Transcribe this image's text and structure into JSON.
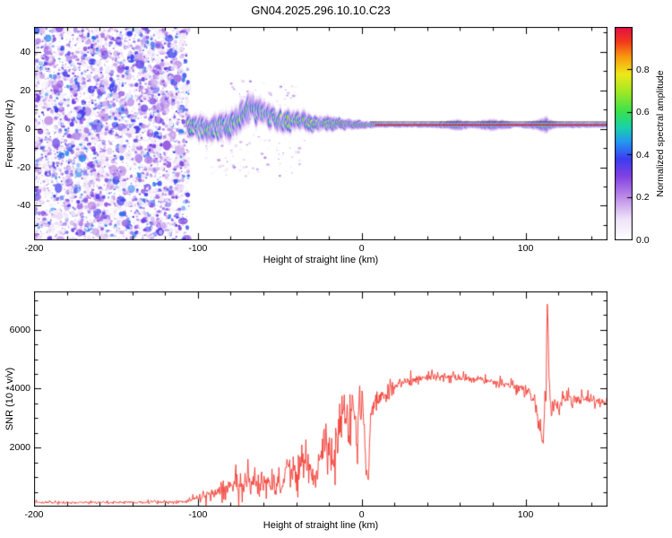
{
  "title": "GN04.2025.296.10.10.C23",
  "chart_data": [
    {
      "type": "heatmap",
      "title": "GN04.2025.296.10.10.C23",
      "xlabel": "Height of straight line (km)",
      "ylabel": "Frequency (Hz)",
      "xlim": [
        -200,
        150
      ],
      "ylim": [
        -58,
        53
      ],
      "xticks": [
        -200,
        -100,
        0,
        100
      ],
      "x_minor_step": 20,
      "yticks": [
        -40,
        -20,
        0,
        20,
        40
      ],
      "y_minor_step": 10,
      "colorbar": {
        "label": "Normalized spectral amplitude",
        "range": [
          0,
          1
        ],
        "ticks": [
          0,
          0.2,
          0.4,
          0.6,
          0.8
        ]
      },
      "colormap_stops": [
        [
          0.0,
          [
            255,
            255,
            255
          ]
        ],
        [
          0.1,
          [
            238,
            226,
            248
          ]
        ],
        [
          0.2,
          [
            190,
            140,
            232
          ]
        ],
        [
          0.3,
          [
            130,
            65,
            225
          ]
        ],
        [
          0.38,
          [
            60,
            60,
            240
          ]
        ],
        [
          0.46,
          [
            35,
            150,
            240
          ]
        ],
        [
          0.53,
          [
            25,
            210,
            170
          ]
        ],
        [
          0.6,
          [
            55,
            225,
            80
          ]
        ],
        [
          0.7,
          [
            165,
            232,
            35
          ]
        ],
        [
          0.78,
          [
            238,
            232,
            25
          ]
        ],
        [
          0.86,
          [
            248,
            155,
            15
          ]
        ],
        [
          0.93,
          [
            242,
            60,
            25
          ]
        ],
        [
          1.0,
          [
            228,
            15,
            70
          ]
        ]
      ],
      "noise_region": {
        "x_range": [
          -200,
          -105.5
        ],
        "dot_count": 5200,
        "max_amplitude": 0.42
      },
      "scatter_below": {
        "x_range": [
          -95,
          -35
        ],
        "f_range": [
          -25,
          -3
        ],
        "dot_count": 90
      },
      "scatter_above": {
        "x_range": [
          -80,
          -40
        ],
        "f_range": [
          12,
          26
        ],
        "dot_count": 40
      },
      "track": {
        "x_range": [
          -106,
          150
        ],
        "center_freq": [
          [
            -106,
            0
          ],
          [
            -103,
            1
          ],
          [
            -100,
            -0.5
          ],
          [
            -97,
            0.5
          ],
          [
            -94,
            -1
          ],
          [
            -91,
            0.5
          ],
          [
            -88,
            0
          ],
          [
            -85,
            1.5
          ],
          [
            -82,
            1
          ],
          [
            -79,
            3
          ],
          [
            -76,
            5
          ],
          [
            -73,
            7.5
          ],
          [
            -70,
            10
          ],
          [
            -68,
            11.5
          ],
          [
            -66,
            10
          ],
          [
            -64,
            8.5
          ],
          [
            -62,
            9.5
          ],
          [
            -60,
            7.5
          ],
          [
            -58,
            8.5
          ],
          [
            -56,
            5.5
          ],
          [
            -54,
            6.5
          ],
          [
            -52,
            4.5
          ],
          [
            -50,
            5.5
          ],
          [
            -48,
            3.5
          ],
          [
            -46,
            5
          ],
          [
            -44,
            3
          ],
          [
            -42,
            4.5
          ],
          [
            -40,
            5.5
          ],
          [
            -38,
            3.5
          ],
          [
            -36,
            4.5
          ],
          [
            -34,
            2.5
          ],
          [
            -32,
            3.5
          ],
          [
            -30,
            2
          ],
          [
            -28,
            3.5
          ],
          [
            -26,
            1.5
          ],
          [
            -24,
            3
          ],
          [
            -22,
            2
          ],
          [
            -20,
            3
          ],
          [
            -17,
            2
          ],
          [
            -14,
            3
          ],
          [
            -11,
            2
          ],
          [
            -8,
            2.8
          ],
          [
            -5,
            2
          ],
          [
            -2,
            2.4
          ],
          [
            0,
            2
          ],
          [
            150,
            2
          ]
        ],
        "spread": [
          [
            -106,
            5
          ],
          [
            -100,
            5.5
          ],
          [
            -95,
            6
          ],
          [
            -90,
            5.5
          ],
          [
            -85,
            6
          ],
          [
            -80,
            6.5
          ],
          [
            -75,
            7
          ],
          [
            -70,
            7
          ],
          [
            -65,
            6.5
          ],
          [
            -60,
            6
          ],
          [
            -55,
            5.5
          ],
          [
            -50,
            5
          ],
          [
            -45,
            5
          ],
          [
            -40,
            4.5
          ],
          [
            -35,
            4.5
          ],
          [
            -30,
            4
          ],
          [
            -25,
            4
          ],
          [
            -20,
            3.5
          ],
          [
            -15,
            3
          ],
          [
            -10,
            2.8
          ],
          [
            -5,
            2.4
          ],
          [
            0,
            2
          ],
          [
            5,
            1.6
          ],
          [
            15,
            1.3
          ],
          [
            40,
            1.3
          ],
          [
            52,
            2
          ],
          [
            58,
            2.8
          ],
          [
            63,
            2.2
          ],
          [
            68,
            1.6
          ],
          [
            74,
            2.4
          ],
          [
            80,
            2.8
          ],
          [
            86,
            2.4
          ],
          [
            92,
            1.5
          ],
          [
            97,
            1.2
          ],
          [
            102,
            1.8
          ],
          [
            106,
            2.6
          ],
          [
            110,
            3.6
          ],
          [
            113,
            4
          ],
          [
            116,
            2.2
          ],
          [
            122,
            1.5
          ],
          [
            135,
            1.4
          ],
          [
            150,
            1.3
          ]
        ],
        "intensity": [
          [
            -106,
            0.72
          ],
          [
            -98,
            0.68
          ],
          [
            -90,
            0.72
          ],
          [
            -82,
            0.7
          ],
          [
            -74,
            0.74
          ],
          [
            -66,
            0.72
          ],
          [
            -58,
            0.7
          ],
          [
            -50,
            0.76
          ],
          [
            -42,
            0.8
          ],
          [
            -34,
            0.84
          ],
          [
            -26,
            0.8
          ],
          [
            -18,
            0.86
          ],
          [
            -10,
            0.9
          ],
          [
            -4,
            0.92
          ],
          [
            0,
            0.95
          ],
          [
            150,
            0.95
          ]
        ],
        "jitter": [
          [
            -106,
            3
          ],
          [
            -80,
            3
          ],
          [
            -60,
            2.6
          ],
          [
            -40,
            2
          ],
          [
            -25,
            1.4
          ],
          [
            -12,
            0.9
          ],
          [
            0,
            0.35
          ],
          [
            10,
            0.25
          ],
          [
            150,
            0.2
          ]
        ],
        "overlay_lines": [
          {
            "freq": 3.6,
            "x_range": [
              5,
              150
            ],
            "color": "#3a3a3a",
            "width": 0.8
          },
          {
            "freq": 2.0,
            "x_range": [
              8,
              150
            ],
            "color": "#cf2030",
            "width": 1.1
          }
        ]
      }
    },
    {
      "type": "line",
      "xlabel": "Height of straight line (km)",
      "ylabel": "SNR (10 * v/v)",
      "xlim": [
        -200,
        150
      ],
      "ylim": [
        0,
        7300
      ],
      "xticks": [
        -200,
        -100,
        0,
        100
      ],
      "x_minor_step": 20,
      "yticks": [
        2000,
        4000,
        6000
      ],
      "y_minor_step": 500,
      "color": "#f23b32",
      "envelope_columns": [
        "height_km",
        "snr_base",
        "snr_noise_amplitude"
      ],
      "envelope": [
        [
          -200,
          140,
          55
        ],
        [
          -170,
          140,
          55
        ],
        [
          -140,
          145,
          55
        ],
        [
          -120,
          150,
          60
        ],
        [
          -108,
          160,
          70
        ],
        [
          -103,
          230,
          130
        ],
        [
          -98,
          330,
          210
        ],
        [
          -93,
          430,
          300
        ],
        [
          -88,
          520,
          380
        ],
        [
          -83,
          620,
          460
        ],
        [
          -78,
          760,
          560
        ],
        [
          -73,
          860,
          640
        ],
        [
          -68,
          800,
          600
        ],
        [
          -63,
          900,
          650
        ],
        [
          -58,
          760,
          520
        ],
        [
          -53,
          660,
          460
        ],
        [
          -48,
          900,
          620
        ],
        [
          -44,
          1300,
          820
        ],
        [
          -40,
          1000,
          700
        ],
        [
          -36,
          1600,
          920
        ],
        [
          -32,
          1300,
          820
        ],
        [
          -28,
          950,
          650
        ],
        [
          -24,
          1800,
          1000
        ],
        [
          -20,
          2300,
          1100
        ],
        [
          -17,
          1500,
          950
        ],
        [
          -14,
          2600,
          1000
        ],
        [
          -11,
          3200,
          800
        ],
        [
          -8,
          2800,
          900
        ],
        [
          -5,
          3400,
          700
        ],
        [
          -3,
          2400,
          1000
        ],
        [
          -1,
          3300,
          700
        ],
        [
          1,
          3200,
          600
        ],
        [
          2.5,
          1500,
          700
        ],
        [
          4,
          600,
          300
        ],
        [
          5.5,
          3200,
          500
        ],
        [
          8,
          3500,
          420
        ],
        [
          12,
          3700,
          360
        ],
        [
          16,
          3900,
          310
        ],
        [
          20,
          4100,
          260
        ],
        [
          25,
          4200,
          230
        ],
        [
          30,
          4300,
          210
        ],
        [
          38,
          4360,
          190
        ],
        [
          46,
          4420,
          180
        ],
        [
          55,
          4400,
          170
        ],
        [
          65,
          4340,
          170
        ],
        [
          75,
          4280,
          160
        ],
        [
          85,
          4210,
          160
        ],
        [
          95,
          4060,
          180
        ],
        [
          102,
          3900,
          260
        ],
        [
          106,
          3500,
          360
        ],
        [
          109,
          2600,
          420
        ],
        [
          111,
          2200,
          360
        ],
        [
          112.5,
          4200,
          900
        ],
        [
          113.2,
          7000,
          260
        ],
        [
          114,
          5200,
          800
        ],
        [
          115.5,
          3100,
          420
        ],
        [
          118,
          3500,
          310
        ],
        [
          124,
          3660,
          260
        ],
        [
          132,
          3690,
          230
        ],
        [
          140,
          3630,
          210
        ],
        [
          150,
          3530,
          190
        ]
      ]
    }
  ]
}
